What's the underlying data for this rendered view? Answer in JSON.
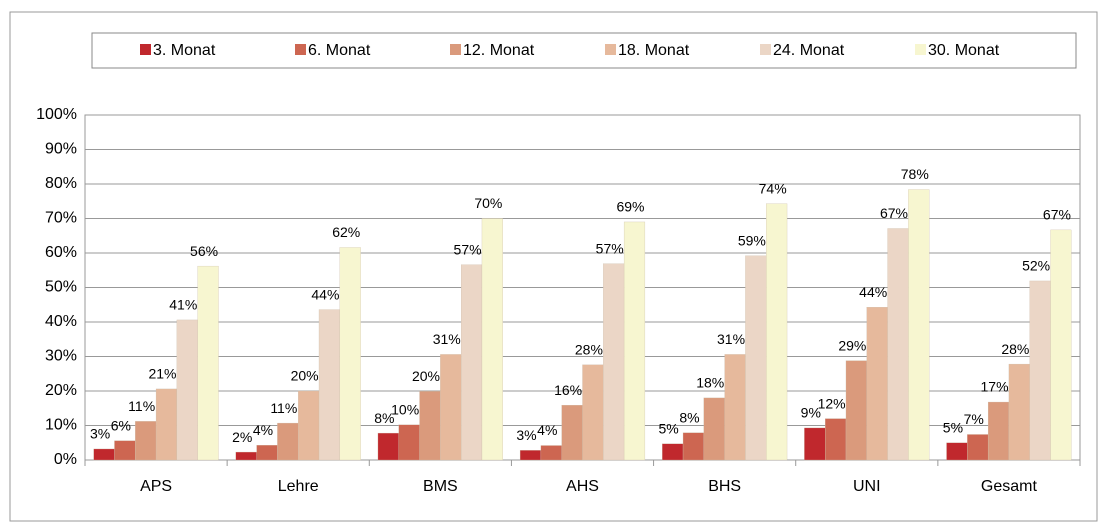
{
  "chart_data": {
    "type": "bar",
    "categories": [
      "APS",
      "Lehre",
      "BMS",
      "AHS",
      "BHS",
      "UNI",
      "Gesamt"
    ],
    "series": [
      {
        "name": "3. Monat",
        "color": "#c0282d",
        "values": [
          3.2,
          2.3,
          7.8,
          2.8,
          4.7,
          9.3,
          5.0
        ],
        "value_labels": [
          "3%",
          "2%",
          "8%",
          "3%",
          "5%",
          "9%",
          "5%"
        ]
      },
      {
        "name": "6. Monat",
        "color": "#cd6651",
        "values": [
          5.6,
          4.3,
          10.2,
          4.2,
          7.9,
          12.0,
          7.4
        ],
        "value_labels": [
          "6%",
          "4%",
          "10%",
          "4%",
          "8%",
          "12%",
          "7%"
        ]
      },
      {
        "name": "12. Monat",
        "color": "#da9a7c",
        "values": [
          11.2,
          10.7,
          19.9,
          15.9,
          18.0,
          28.8,
          16.8
        ],
        "value_labels": [
          "11%",
          "11%",
          "20%",
          "16%",
          "18%",
          "29%",
          "17%"
        ]
      },
      {
        "name": "18. Monat",
        "color": "#e6b99c",
        "values": [
          20.6,
          20.0,
          30.6,
          27.6,
          30.6,
          44.3,
          27.8
        ],
        "value_labels": [
          "21%",
          "20%",
          "31%",
          "28%",
          "31%",
          "44%",
          "28%"
        ]
      },
      {
        "name": "24. Monat",
        "color": "#ebd6c6",
        "values": [
          40.6,
          43.6,
          56.6,
          56.9,
          59.2,
          67.1,
          51.9
        ],
        "value_labels": [
          "41%",
          "44%",
          "57%",
          "57%",
          "59%",
          "67%",
          "52%"
        ]
      },
      {
        "name": "30. Monat",
        "color": "#f7f6d0",
        "values": [
          56.2,
          61.6,
          70.0,
          69.0,
          74.3,
          78.4,
          66.7
        ],
        "value_labels": [
          "56%",
          "62%",
          "70%",
          "69%",
          "74%",
          "78%",
          "67%"
        ]
      }
    ],
    "ylim": [
      0,
      100
    ],
    "yticks": [
      {
        "value": 0,
        "label": "0%"
      },
      {
        "value": 10,
        "label": "10%"
      },
      {
        "value": 20,
        "label": "20%"
      },
      {
        "value": 30,
        "label": "30%"
      },
      {
        "value": 40,
        "label": "40%"
      },
      {
        "value": 50,
        "label": "50%"
      },
      {
        "value": 60,
        "label": "60%"
      },
      {
        "value": 70,
        "label": "70%"
      },
      {
        "value": 80,
        "label": "80%"
      },
      {
        "value": 90,
        "label": "90%"
      },
      {
        "value": 100,
        "label": "100%"
      }
    ],
    "grid": true,
    "legend": "top"
  }
}
